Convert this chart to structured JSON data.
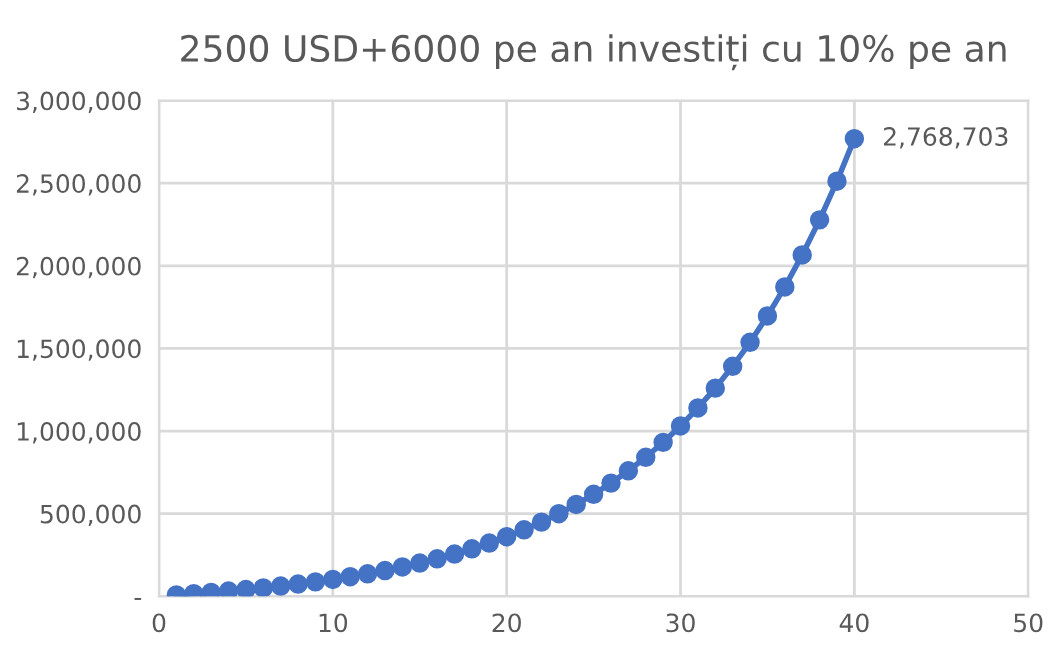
{
  "chart_data": {
    "type": "line",
    "title": "2500 USD+6000 pe an investiți cu 10% pe an",
    "x": [
      1,
      2,
      3,
      4,
      5,
      6,
      7,
      8,
      9,
      10,
      11,
      12,
      13,
      14,
      15,
      16,
      17,
      18,
      19,
      20,
      21,
      22,
      23,
      24,
      25,
      26,
      27,
      28,
      29,
      30,
      31,
      32,
      33,
      34,
      35,
      36,
      37,
      38,
      39,
      40
    ],
    "series": [
      {
        "color": "#4472c4",
        "values": [
          8750,
          15625,
          23188,
          31506,
          40657,
          50723,
          61795,
          73974,
          87372,
          102109,
          118320,
          136152,
          155767,
          177344,
          201078,
          227186,
          255904,
          287495,
          322244,
          360469,
          402516,
          448767,
          499644,
          555608,
          617169,
          684886,
          759375,
          841312,
          931443,
          1030588,
          1139646,
          1259611,
          1391572,
          1536729,
          1696402,
          1872043,
          2065247,
          2277771,
          2511549,
          2768703
        ],
        "value_labels": [
          null,
          null,
          null,
          null,
          null,
          null,
          null,
          null,
          null,
          null,
          null,
          null,
          null,
          null,
          null,
          null,
          null,
          null,
          null,
          null,
          null,
          null,
          null,
          null,
          null,
          null,
          null,
          null,
          null,
          null,
          null,
          null,
          null,
          null,
          null,
          null,
          null,
          null,
          null,
          "2,768,703"
        ]
      }
    ],
    "xlim": [
      0,
      50
    ],
    "xticks": [
      0,
      10,
      20,
      30,
      40,
      50
    ],
    "ylim": [
      0,
      3000000
    ],
    "yticks": [
      {
        "value": 0,
        "label": "-"
      },
      {
        "value": 500000,
        "label": "500,000"
      },
      {
        "value": 1000000,
        "label": "1,000,000"
      },
      {
        "value": 1500000,
        "label": "1,500,000"
      },
      {
        "value": 2000000,
        "label": "2,000,000"
      },
      {
        "value": 2500000,
        "label": "2,500,000"
      },
      {
        "value": 3000000,
        "label": "3,000,000"
      }
    ],
    "grid": true,
    "marker": "circle",
    "line_style": "solid"
  }
}
